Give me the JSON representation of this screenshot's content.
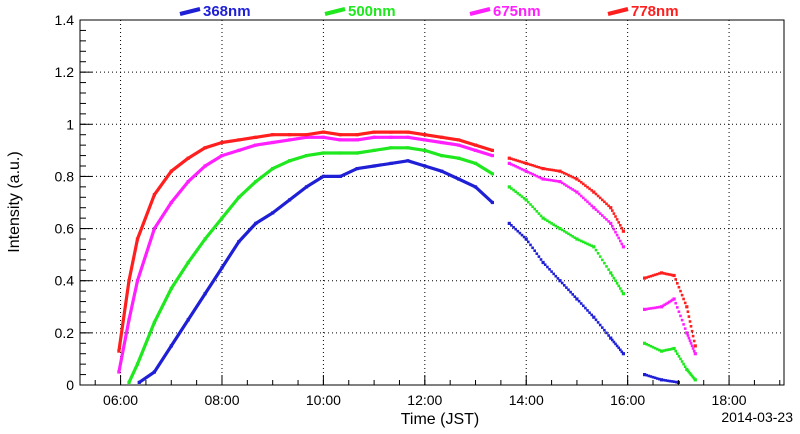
{
  "chart_data": {
    "type": "scatter",
    "xlabel": "Time (JST)",
    "ylabel": "Intensity (a.u.)",
    "date_label": "2014-03-23",
    "xlim": [
      "05:12",
      "19:05"
    ],
    "ylim": [
      0,
      1.4
    ],
    "grid": true,
    "legend_position": "top",
    "x_tick_labels": [
      "06:00",
      "08:00",
      "10:00",
      "12:00",
      "14:00",
      "16:00",
      "18:00"
    ],
    "y_tick_labels": [
      "0",
      "0.2",
      "0.4",
      "0.6",
      "0.8",
      "1",
      "1.2",
      "1.4"
    ],
    "series": [
      {
        "name": "368nm",
        "color": "#1f1fd6",
        "points": [
          [
            "06:22",
            0.01
          ],
          [
            "06:40",
            0.05
          ],
          [
            "07:00",
            0.15
          ],
          [
            "07:20",
            0.25
          ],
          [
            "07:40",
            0.35
          ],
          [
            "08:00",
            0.45
          ],
          [
            "08:20",
            0.55
          ],
          [
            "08:40",
            0.62
          ],
          [
            "09:00",
            0.66
          ],
          [
            "09:20",
            0.71
          ],
          [
            "09:40",
            0.76
          ],
          [
            "10:00",
            0.8
          ],
          [
            "10:20",
            0.8
          ],
          [
            "10:40",
            0.83
          ],
          [
            "11:00",
            0.84
          ],
          [
            "11:20",
            0.85
          ],
          [
            "11:40",
            0.86
          ],
          [
            "12:00",
            0.84
          ],
          [
            "12:20",
            0.82
          ],
          [
            "12:40",
            0.79
          ],
          [
            "13:00",
            0.76
          ],
          [
            "13:20",
            0.7
          ],
          [
            "13:40",
            0.62
          ],
          [
            "14:00",
            0.56
          ],
          [
            "14:20",
            0.47
          ],
          [
            "14:40",
            0.4
          ],
          [
            "15:00",
            0.33
          ],
          [
            "15:20",
            0.26
          ],
          [
            "15:40",
            0.18
          ],
          [
            "15:55",
            0.12
          ],
          [
            "16:20",
            0.04
          ],
          [
            "16:40",
            0.02
          ],
          [
            "17:00",
            0.01
          ]
        ]
      },
      {
        "name": "500nm",
        "color": "#1fe81f",
        "points": [
          [
            "06:10",
            0.01
          ],
          [
            "06:20",
            0.08
          ],
          [
            "06:40",
            0.24
          ],
          [
            "07:00",
            0.37
          ],
          [
            "07:20",
            0.47
          ],
          [
            "07:40",
            0.56
          ],
          [
            "08:00",
            0.64
          ],
          [
            "08:20",
            0.72
          ],
          [
            "08:40",
            0.78
          ],
          [
            "09:00",
            0.83
          ],
          [
            "09:20",
            0.86
          ],
          [
            "09:40",
            0.88
          ],
          [
            "10:00",
            0.89
          ],
          [
            "10:20",
            0.89
          ],
          [
            "10:40",
            0.89
          ],
          [
            "11:00",
            0.9
          ],
          [
            "11:20",
            0.91
          ],
          [
            "11:40",
            0.91
          ],
          [
            "12:00",
            0.9
          ],
          [
            "12:20",
            0.88
          ],
          [
            "12:40",
            0.87
          ],
          [
            "13:00",
            0.85
          ],
          [
            "13:20",
            0.81
          ],
          [
            "13:40",
            0.76
          ],
          [
            "14:00",
            0.71
          ],
          [
            "14:20",
            0.64
          ],
          [
            "14:40",
            0.6
          ],
          [
            "15:00",
            0.56
          ],
          [
            "15:20",
            0.53
          ],
          [
            "15:40",
            0.43
          ],
          [
            "15:55",
            0.35
          ],
          [
            "16:20",
            0.16
          ],
          [
            "16:40",
            0.13
          ],
          [
            "16:55",
            0.14
          ],
          [
            "17:10",
            0.06
          ],
          [
            "17:20",
            0.02
          ]
        ]
      },
      {
        "name": "675nm",
        "color": "#ff1fff",
        "points": [
          [
            "05:58",
            0.05
          ],
          [
            "06:10",
            0.25
          ],
          [
            "06:20",
            0.4
          ],
          [
            "06:40",
            0.6
          ],
          [
            "07:00",
            0.7
          ],
          [
            "07:20",
            0.78
          ],
          [
            "07:40",
            0.84
          ],
          [
            "08:00",
            0.88
          ],
          [
            "08:20",
            0.9
          ],
          [
            "08:40",
            0.92
          ],
          [
            "09:00",
            0.93
          ],
          [
            "09:20",
            0.94
          ],
          [
            "09:40",
            0.95
          ],
          [
            "10:00",
            0.95
          ],
          [
            "10:20",
            0.94
          ],
          [
            "10:40",
            0.94
          ],
          [
            "11:00",
            0.95
          ],
          [
            "11:20",
            0.95
          ],
          [
            "11:40",
            0.95
          ],
          [
            "12:00",
            0.94
          ],
          [
            "12:20",
            0.93
          ],
          [
            "12:40",
            0.92
          ],
          [
            "13:00",
            0.9
          ],
          [
            "13:20",
            0.88
          ],
          [
            "13:40",
            0.85
          ],
          [
            "14:00",
            0.82
          ],
          [
            "14:20",
            0.79
          ],
          [
            "14:40",
            0.78
          ],
          [
            "15:00",
            0.74
          ],
          [
            "15:20",
            0.68
          ],
          [
            "15:40",
            0.62
          ],
          [
            "15:55",
            0.53
          ],
          [
            "16:20",
            0.29
          ],
          [
            "16:40",
            0.3
          ],
          [
            "16:55",
            0.33
          ],
          [
            "17:10",
            0.2
          ],
          [
            "17:20",
            0.12
          ]
        ]
      },
      {
        "name": "778nm",
        "color": "#ff1f1f",
        "points": [
          [
            "05:58",
            0.13
          ],
          [
            "06:10",
            0.4
          ],
          [
            "06:20",
            0.56
          ],
          [
            "06:40",
            0.73
          ],
          [
            "07:00",
            0.82
          ],
          [
            "07:20",
            0.87
          ],
          [
            "07:40",
            0.91
          ],
          [
            "08:00",
            0.93
          ],
          [
            "08:20",
            0.94
          ],
          [
            "08:40",
            0.95
          ],
          [
            "09:00",
            0.96
          ],
          [
            "09:20",
            0.96
          ],
          [
            "09:40",
            0.96
          ],
          [
            "10:00",
            0.97
          ],
          [
            "10:20",
            0.96
          ],
          [
            "10:40",
            0.96
          ],
          [
            "11:00",
            0.97
          ],
          [
            "11:20",
            0.97
          ],
          [
            "11:40",
            0.97
          ],
          [
            "12:00",
            0.96
          ],
          [
            "12:20",
            0.95
          ],
          [
            "12:40",
            0.94
          ],
          [
            "13:00",
            0.92
          ],
          [
            "13:20",
            0.9
          ],
          [
            "13:40",
            0.87
          ],
          [
            "14:00",
            0.85
          ],
          [
            "14:20",
            0.83
          ],
          [
            "14:40",
            0.82
          ],
          [
            "15:00",
            0.79
          ],
          [
            "15:20",
            0.74
          ],
          [
            "15:40",
            0.68
          ],
          [
            "15:55",
            0.59
          ],
          [
            "16:20",
            0.41
          ],
          [
            "16:40",
            0.43
          ],
          [
            "16:55",
            0.42
          ],
          [
            "17:10",
            0.3
          ],
          [
            "17:20",
            0.15
          ]
        ]
      }
    ]
  }
}
